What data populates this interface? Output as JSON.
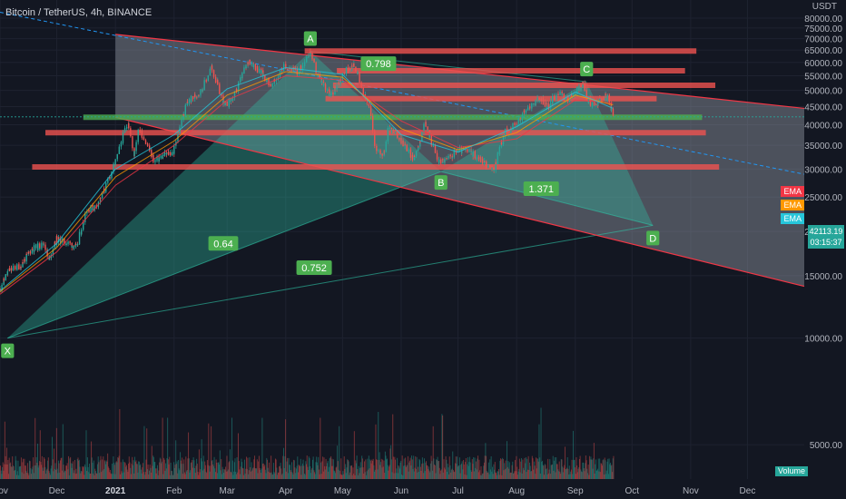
{
  "header": {
    "title": "Bitcoin / TetherUS, 4h, BINANCE",
    "unit": "USDT"
  },
  "colors": {
    "background": "#131722",
    "up": "#26a69a",
    "down": "#ef5350",
    "pattern_fill": "#2ec4a6",
    "channel_fill": "#9aa3ad",
    "channel_line": "#f23645",
    "support_line": "#4caf50",
    "midline": "#2196f3"
  },
  "ema_labels": [
    {
      "text": "EMA",
      "color": "#f23645"
    },
    {
      "text": "EMA",
      "color": "#ff9800"
    },
    {
      "text": "EMA",
      "color": "#26c6da"
    }
  ],
  "last_price": {
    "value": "42113.19",
    "countdown": "03:15:37"
  },
  "volume_label": "Volume",
  "chart_data": {
    "type": "line",
    "title": "Bitcoin / TetherUS, 4h, BINANCE",
    "y_scale": "log",
    "ylim": [
      4000,
      90000
    ],
    "yticks": [
      5000,
      10000,
      15000,
      20000,
      25000,
      30000,
      35000,
      40000,
      45000,
      50000,
      55000,
      60000,
      65000,
      70000,
      75000,
      80000
    ],
    "ytick_labels": [
      "5000.00",
      "10000.00",
      "15000.00",
      "20000.00",
      "25000.00",
      "30000.00",
      "35000.00",
      "40000.00",
      "45000.00",
      "50000.00",
      "55000.00",
      "60000.00",
      "65000.00",
      "70000.00",
      "75000.00",
      "80000.00"
    ],
    "x_start": "2020-11-01",
    "x_end": "2021-12-31",
    "xticks": [
      {
        "date": "2020-11-01",
        "label": "Nov"
      },
      {
        "date": "2020-12-01",
        "label": "Dec"
      },
      {
        "date": "2021-01-01",
        "label": "2021"
      },
      {
        "date": "2021-02-01",
        "label": "Feb"
      },
      {
        "date": "2021-03-01",
        "label": "Mar"
      },
      {
        "date": "2021-04-01",
        "label": "Apr"
      },
      {
        "date": "2021-05-01",
        "label": "May"
      },
      {
        "date": "2021-06-01",
        "label": "Jun"
      },
      {
        "date": "2021-07-01",
        "label": "Jul"
      },
      {
        "date": "2021-08-01",
        "label": "Aug"
      },
      {
        "date": "2021-09-01",
        "label": "Sep"
      },
      {
        "date": "2021-10-01",
        "label": "Oct"
      },
      {
        "date": "2021-11-01",
        "label": "Nov"
      },
      {
        "date": "2021-12-01",
        "label": "Dec"
      }
    ],
    "price_series": {
      "name": "BTCUSDT",
      "points": [
        [
          "2020-11-01",
          13700
        ],
        [
          "2020-11-06",
          15500
        ],
        [
          "2020-11-12",
          16000
        ],
        [
          "2020-11-18",
          17800
        ],
        [
          "2020-11-25",
          18500
        ],
        [
          "2020-11-27",
          16500
        ],
        [
          "2020-12-01",
          19000
        ],
        [
          "2020-12-08",
          18500
        ],
        [
          "2020-12-12",
          18000
        ],
        [
          "2020-12-17",
          23000
        ],
        [
          "2020-12-22",
          23500
        ],
        [
          "2020-12-27",
          26500
        ],
        [
          "2021-01-02",
          32000
        ],
        [
          "2021-01-08",
          41000
        ],
        [
          "2021-01-11",
          33000
        ],
        [
          "2021-01-14",
          39000
        ],
        [
          "2021-01-22",
          31500
        ],
        [
          "2021-01-28",
          33000
        ],
        [
          "2021-02-01",
          33500
        ],
        [
          "2021-02-08",
          46000
        ],
        [
          "2021-02-12",
          48000
        ],
        [
          "2021-02-16",
          50000
        ],
        [
          "2021-02-21",
          58000
        ],
        [
          "2021-02-28",
          45000
        ],
        [
          "2021-03-05",
          48000
        ],
        [
          "2021-03-13",
          61000
        ],
        [
          "2021-03-18",
          57000
        ],
        [
          "2021-03-25",
          51500
        ],
        [
          "2021-04-01",
          59000
        ],
        [
          "2021-04-08",
          56000
        ],
        [
          "2021-04-14",
          64500
        ],
        [
          "2021-04-18",
          55500
        ],
        [
          "2021-04-25",
          48000
        ],
        [
          "2021-05-03",
          57000
        ],
        [
          "2021-05-08",
          59000
        ],
        [
          "2021-05-12",
          49000
        ],
        [
          "2021-05-16",
          44000
        ],
        [
          "2021-05-19",
          34000
        ],
        [
          "2021-05-23",
          33000
        ],
        [
          "2021-05-26",
          39500
        ],
        [
          "2021-06-01",
          36500
        ],
        [
          "2021-06-08",
          32000
        ],
        [
          "2021-06-14",
          40000
        ],
        [
          "2021-06-21",
          31500
        ],
        [
          "2021-06-26",
          32000
        ],
        [
          "2021-07-01",
          34000
        ],
        [
          "2021-07-08",
          33500
        ],
        [
          "2021-07-15",
          31500
        ],
        [
          "2021-07-20",
          29500
        ],
        [
          "2021-07-26",
          38000
        ],
        [
          "2021-08-01",
          40000
        ],
        [
          "2021-08-07",
          44500
        ],
        [
          "2021-08-14",
          47500
        ],
        [
          "2021-08-18",
          45000
        ],
        [
          "2021-08-23",
          49500
        ],
        [
          "2021-08-28",
          47000
        ],
        [
          "2021-09-01",
          49000
        ],
        [
          "2021-09-06",
          52500
        ],
        [
          "2021-09-08",
          46500
        ],
        [
          "2021-09-11",
          45500
        ],
        [
          "2021-09-16",
          48000
        ],
        [
          "2021-09-19",
          47500
        ],
        [
          "2021-09-21",
          42113
        ]
      ]
    },
    "ema_series": [
      {
        "color": "#f23645",
        "points": [
          [
            "2020-11-01",
            13300
          ],
          [
            "2020-12-01",
            17500
          ],
          [
            "2021-01-01",
            27000
          ],
          [
            "2021-02-01",
            35000
          ],
          [
            "2021-03-01",
            47000
          ],
          [
            "2021-04-01",
            55000
          ],
          [
            "2021-05-01",
            53500
          ],
          [
            "2021-06-01",
            41000
          ],
          [
            "2021-07-01",
            34500
          ],
          [
            "2021-08-01",
            36500
          ],
          [
            "2021-09-01",
            47000
          ],
          [
            "2021-09-21",
            46000
          ]
        ]
      },
      {
        "color": "#ff9800",
        "points": [
          [
            "2020-11-01",
            13500
          ],
          [
            "2020-12-01",
            18000
          ],
          [
            "2021-01-01",
            28500
          ],
          [
            "2021-02-01",
            36000
          ],
          [
            "2021-03-01",
            48500
          ],
          [
            "2021-04-01",
            56500
          ],
          [
            "2021-05-01",
            54500
          ],
          [
            "2021-06-01",
            39000
          ],
          [
            "2021-07-01",
            34000
          ],
          [
            "2021-08-01",
            38000
          ],
          [
            "2021-09-01",
            48500
          ],
          [
            "2021-09-21",
            45500
          ]
        ]
      },
      {
        "color": "#26c6da",
        "points": [
          [
            "2020-11-01",
            13600
          ],
          [
            "2020-12-01",
            18500
          ],
          [
            "2021-01-01",
            30000
          ],
          [
            "2021-02-01",
            37500
          ],
          [
            "2021-03-01",
            50500
          ],
          [
            "2021-04-01",
            58000
          ],
          [
            "2021-05-01",
            55500
          ],
          [
            "2021-06-01",
            37500
          ],
          [
            "2021-07-01",
            33500
          ],
          [
            "2021-08-01",
            39500
          ],
          [
            "2021-09-01",
            49500
          ],
          [
            "2021-09-21",
            44500
          ]
        ]
      }
    ],
    "harmonic_pattern": {
      "points": [
        {
          "label": "X",
          "date": "2020-11-05",
          "price": 10000
        },
        {
          "label": "A",
          "date": "2021-04-14",
          "price": 64500
        },
        {
          "label": "B",
          "date": "2021-06-22",
          "price": 29500
        },
        {
          "label": "C",
          "date": "2021-09-07",
          "price": 52900
        },
        {
          "label": "D",
          "date": "2021-10-12",
          "price": 20800
        }
      ],
      "ratios": [
        {
          "text": "0.798",
          "date": "2021-05-20",
          "price": 59500
        },
        {
          "text": "1.371",
          "date": "2021-08-14",
          "price": 26400
        },
        {
          "text": "0.64",
          "date": "2021-02-27",
          "price": 18500
        },
        {
          "text": "0.752",
          "date": "2021-04-16",
          "price": 15800
        }
      ]
    },
    "channel": {
      "upper": [
        [
          "2021-01-01",
          72000
        ],
        [
          "2021-12-31",
          44500
        ]
      ],
      "lower": [
        [
          "2021-01-01",
          42000
        ],
        [
          "2021-12-31",
          14000
        ]
      ],
      "mid": [
        [
          "2021-01-01",
          57000
        ],
        [
          "2021-12-31",
          29000
        ]
      ]
    },
    "horizontal_levels": [
      {
        "price": 64600,
        "from": "2021-04-11",
        "to": "2021-11-04",
        "color": "#ef5350"
      },
      {
        "price": 56800,
        "from": "2021-04-28",
        "to": "2021-10-29",
        "color": "#ef5350"
      },
      {
        "price": 51700,
        "from": "2021-04-26",
        "to": "2021-11-14",
        "color": "#ef5350"
      },
      {
        "price": 47400,
        "from": "2021-04-22",
        "to": "2021-10-14",
        "color": "#ef5350"
      },
      {
        "price": 42000,
        "from": "2020-12-15",
        "to": "2021-11-07",
        "color": "#4caf50"
      },
      {
        "price": 38000,
        "from": "2020-11-25",
        "to": "2021-11-09",
        "color": "#ef5350"
      },
      {
        "price": 30400,
        "from": "2020-11-18",
        "to": "2021-11-16",
        "color": "#ef5350"
      }
    ]
  }
}
